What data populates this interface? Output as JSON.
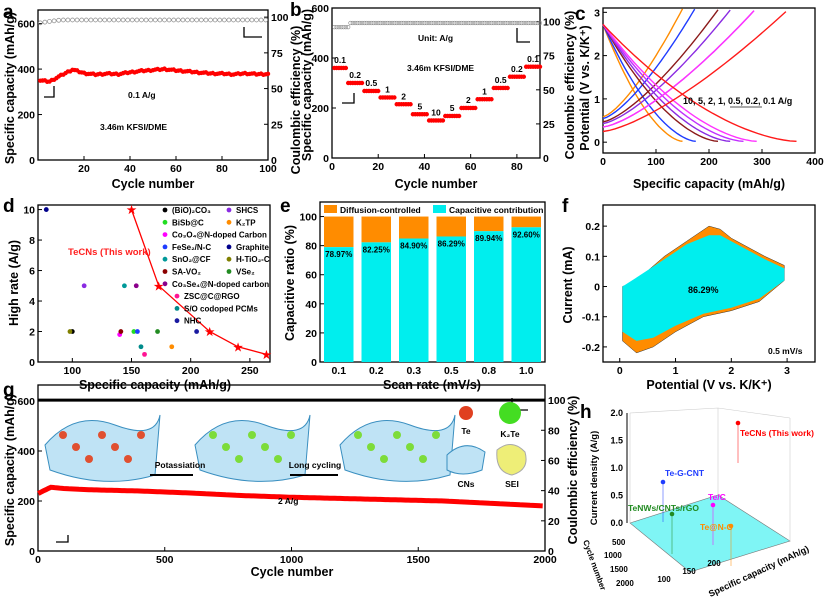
{
  "chart_data": [
    {
      "panel": "a",
      "type": "line",
      "xlabel": "Cycle number",
      "ylabel": "Specific capacity (mAh/g)",
      "y2label": "Coulombic efficiency (%)",
      "xlim": [
        0,
        100
      ],
      "ylim": [
        0,
        660
      ],
      "y2lim": [
        0,
        105
      ],
      "xticks": [
        20,
        40,
        60,
        80,
        100
      ],
      "yticks": [
        0,
        200,
        400,
        600
      ],
      "y2ticks": [
        0,
        25,
        50,
        75,
        100
      ],
      "annotations": [
        "0.1 A/g",
        "3.46m KFSI/DME"
      ],
      "capacity": {
        "x": [
          1,
          5,
          10,
          15,
          20,
          25,
          30,
          35,
          40,
          45,
          50,
          55,
          60,
          65,
          70,
          75,
          80,
          85,
          90,
          95,
          100
        ],
        "y": [
          350,
          345,
          372,
          398,
          382,
          376,
          380,
          378,
          386,
          392,
          396,
          400,
          394,
          390,
          385,
          381,
          380,
          377,
          381,
          378,
          378
        ]
      },
      "coulombic_efficiency": {
        "x": [
          1,
          5,
          10,
          20,
          40,
          60,
          80,
          100
        ],
        "y": [
          96,
          97,
          98,
          98,
          98,
          98,
          98,
          98
        ]
      },
      "colors": {
        "capacity": "#ff0000",
        "ce": "#888888"
      }
    },
    {
      "panel": "b",
      "type": "line",
      "xlabel": "Cycle number",
      "ylabel": "Specific capacity (mAh/g)",
      "y2label": "Coulombic efficiency (%)",
      "xlim": [
        0,
        90
      ],
      "ylim": [
        0,
        600
      ],
      "y2lim": [
        0,
        110
      ],
      "xticks": [
        0,
        20,
        40,
        60,
        80
      ],
      "yticks": [
        0,
        200,
        400,
        600
      ],
      "y2ticks": [
        0,
        25,
        50,
        75,
        100
      ],
      "annotations": [
        "Unit: A/g",
        "3.46m KFSI/DME"
      ],
      "rate_steps": [
        {
          "rate": "0.1",
          "cycles": [
            1,
            6
          ],
          "capacity": 360
        },
        {
          "rate": "0.2",
          "cycles": [
            7,
            13
          ],
          "capacity": 300
        },
        {
          "rate": "0.5",
          "cycles": [
            14,
            20
          ],
          "capacity": 268
        },
        {
          "rate": "1",
          "cycles": [
            21,
            27
          ],
          "capacity": 242
        },
        {
          "rate": "2",
          "cycles": [
            28,
            34
          ],
          "capacity": 215
        },
        {
          "rate": "5",
          "cycles": [
            35,
            41
          ],
          "capacity": 175
        },
        {
          "rate": "10",
          "cycles": [
            42,
            48
          ],
          "capacity": 150
        },
        {
          "rate": "5",
          "cycles": [
            49,
            55
          ],
          "capacity": 168
        },
        {
          "rate": "2",
          "cycles": [
            56,
            62
          ],
          "capacity": 200
        },
        {
          "rate": "1",
          "cycles": [
            63,
            69
          ],
          "capacity": 235
        },
        {
          "rate": "0.5",
          "cycles": [
            70,
            76
          ],
          "capacity": 280
        },
        {
          "rate": "0.2",
          "cycles": [
            77,
            83
          ],
          "capacity": 325
        },
        {
          "rate": "0.1",
          "cycles": [
            84,
            90
          ],
          "capacity": 365
        }
      ],
      "coulombic_efficiency_level": 99
    },
    {
      "panel": "c",
      "type": "line",
      "xlabel": "Specific capacity (mAh/g)",
      "ylabel": "Potential (V vs. K/K⁺)",
      "xlim": [
        0,
        400
      ],
      "ylim": [
        -0.25,
        3.1
      ],
      "xticks": [
        0,
        100,
        200,
        300,
        400
      ],
      "yticks": [
        0,
        1,
        2,
        3
      ],
      "annotation": "10, 5, 2, 1, 0.5, 0.2, 0.1 A/g",
      "series": [
        {
          "rate": "10",
          "discharge_capacity": 150,
          "charge_capacity": 150,
          "color": "#ff8c00"
        },
        {
          "rate": "5",
          "discharge_capacity": 175,
          "charge_capacity": 173,
          "color": "#1f3cff"
        },
        {
          "rate": "2",
          "discharge_capacity": 217,
          "charge_capacity": 217,
          "color": "#8b1a1a"
        },
        {
          "rate": "1",
          "discharge_capacity": 240,
          "charge_capacity": 240,
          "color": "#8a2be2"
        },
        {
          "rate": "0.5",
          "discharge_capacity": 265,
          "charge_capacity": 285,
          "color": "#c030ff"
        },
        {
          "rate": "0.2",
          "discharge_capacity": 290,
          "charge_capacity": 285,
          "color": "#ff33ff"
        },
        {
          "rate": "0.1",
          "discharge_capacity": 365,
          "charge_capacity": 345,
          "color": "#ff1a1a"
        }
      ]
    },
    {
      "panel": "d",
      "type": "scatter",
      "xlabel": "Specific capacity (mAh/g)",
      "ylabel": "High rate (A/g)",
      "xlim": [
        71,
        267
      ],
      "ylim": [
        0,
        10.3
      ],
      "xticks": [
        100,
        150,
        200,
        250
      ],
      "yticks": [
        0,
        2,
        4,
        6,
        8,
        10
      ],
      "this_work": {
        "name": "TeCNs (This work)",
        "x": [
          150,
          173,
          216,
          240,
          264
        ],
        "y": [
          10,
          5,
          2,
          1,
          0.5
        ],
        "color": "#ff0000"
      },
      "series": [
        {
          "name": "(BiO)₂CO₃",
          "color": "#000000",
          "marker": "circle",
          "points": [
            [
              100,
              2
            ]
          ]
        },
        {
          "name": "BiSb@C",
          "color": "#22dd22",
          "marker": "triangle",
          "points": [
            [
              152,
              2
            ]
          ]
        },
        {
          "name": "Co₃O₄@N-doped Carbon",
          "color": "#ff00ff",
          "marker": "circle",
          "points": [
            [
              140,
              1.8
            ]
          ]
        },
        {
          "name": "FeSe₂/N-C",
          "color": "#1f3cff",
          "marker": "half",
          "points": [
            [
              155,
              2
            ]
          ]
        },
        {
          "name": "SnO₂@CF",
          "color": "#009999",
          "marker": "half",
          "points": [
            [
              144,
              5
            ]
          ]
        },
        {
          "name": "SA-VO₂",
          "color": "#8b0000",
          "marker": "triangle",
          "points": [
            [
              141,
              2
            ]
          ]
        },
        {
          "name": "Co₃Se₄@N-doped carbon",
          "color": "#8b008b",
          "marker": "circle",
          "points": [
            [
              154,
              5
            ]
          ]
        },
        {
          "name": "ZSC@C@RGO",
          "color": "#ff1493",
          "marker": "triangle-left",
          "points": [
            [
              161,
              0.5
            ]
          ]
        },
        {
          "name": "S/O codoped PCMs",
          "color": "#008b8b",
          "marker": "circle",
          "points": [
            [
              158,
              1
            ]
          ]
        },
        {
          "name": "NHC",
          "color": "#1a1aa0",
          "marker": "triangle-left",
          "points": [
            [
              205,
              2
            ]
          ]
        },
        {
          "name": "SHCS",
          "color": "#8a2be2",
          "marker": "circle",
          "points": [
            [
              110,
              5
            ]
          ]
        },
        {
          "name": "K₂TP",
          "color": "#ff8c00",
          "marker": "circle",
          "points": [
            [
              184,
              1
            ]
          ]
        },
        {
          "name": "Graphite",
          "color": "#00008b",
          "marker": "circle",
          "points": [
            [
              78,
              10
            ]
          ]
        },
        {
          "name": "H-TiO₂-C",
          "color": "#808000",
          "marker": "circle",
          "points": [
            [
              98,
              2
            ]
          ]
        },
        {
          "name": "VSe₂",
          "color": "#228b22",
          "marker": "circle",
          "points": [
            [
              172,
              2
            ]
          ]
        }
      ]
    },
    {
      "panel": "e",
      "type": "bar",
      "xlabel": "Scan rate (mV/s)",
      "ylabel": "Capacitive ratio (%)",
      "ylim": [
        0,
        110
      ],
      "yticks": [
        0,
        20,
        40,
        60,
        80,
        100
      ],
      "categories": [
        "0.1",
        "0.2",
        "0.3",
        "0.5",
        "0.8",
        "1.0"
      ],
      "series": [
        {
          "name": "Capacitive contribution",
          "values": [
            78.97,
            82.25,
            84.9,
            86.29,
            89.94,
            92.6
          ],
          "color": "#00eeee"
        },
        {
          "name": "Diffusion-controlled",
          "values": [
            21.03,
            17.75,
            15.1,
            13.71,
            10.06,
            7.4
          ],
          "color": "#ff8c00"
        }
      ],
      "data_labels": [
        "78.97%",
        "82.25%",
        "84.90%",
        "86.29%",
        "89.94%",
        "92.60%"
      ],
      "legend": "top"
    },
    {
      "panel": "f",
      "type": "area",
      "xlabel": "Potential (V vs. K/K⁺)",
      "ylabel": "Current (mA)",
      "xlim": [
        -0.3,
        3.5
      ],
      "ylim": [
        -0.25,
        0.27
      ],
      "xticks": [
        0,
        1,
        2,
        3
      ],
      "yticks": [
        -0.2,
        -0.1,
        0.0,
        0.1,
        0.2
      ],
      "annotations": [
        "86.29%",
        "0.5 mV/s"
      ],
      "total_cv": {
        "upper": [
          [
            0.05,
            0.0
          ],
          [
            0.3,
            0.02
          ],
          [
            0.8,
            0.1
          ],
          [
            1.2,
            0.15
          ],
          [
            1.6,
            0.2
          ],
          [
            1.8,
            0.19
          ],
          [
            2.0,
            0.16
          ],
          [
            2.6,
            0.1
          ],
          [
            2.95,
            0.07
          ]
        ],
        "lower": [
          [
            2.95,
            0.02
          ],
          [
            2.5,
            -0.05
          ],
          [
            2.0,
            -0.08
          ],
          [
            1.5,
            -0.1
          ],
          [
            1.0,
            -0.15
          ],
          [
            0.6,
            -0.2
          ],
          [
            0.3,
            -0.22
          ],
          [
            0.05,
            -0.18
          ]
        ]
      },
      "capacitive_cv": {
        "upper": [
          [
            0.05,
            0.0
          ],
          [
            0.3,
            0.03
          ],
          [
            0.8,
            0.09
          ],
          [
            1.2,
            0.14
          ],
          [
            1.6,
            0.17
          ],
          [
            1.8,
            0.17
          ],
          [
            2.0,
            0.15
          ],
          [
            2.6,
            0.09
          ],
          [
            2.95,
            0.06
          ]
        ],
        "lower": [
          [
            2.95,
            0.02
          ],
          [
            2.5,
            -0.04
          ],
          [
            2.0,
            -0.07
          ],
          [
            1.5,
            -0.09
          ],
          [
            1.0,
            -0.13
          ],
          [
            0.6,
            -0.17
          ],
          [
            0.3,
            -0.18
          ],
          [
            0.05,
            -0.15
          ]
        ]
      },
      "colors": {
        "total": "#ff8c00",
        "capacitive": "#00eeee"
      }
    },
    {
      "panel": "g",
      "type": "line",
      "xlabel": "Cycle number",
      "ylabel": "Specific capacity (mAh/g)",
      "y2label": "Coulombic efficiency (%)",
      "xlim": [
        0,
        2000
      ],
      "ylim": [
        0,
        664
      ],
      "y2lim": [
        0,
        110
      ],
      "xticks": [
        0,
        500,
        1000,
        1500,
        2000
      ],
      "yticks": [
        0,
        200,
        400,
        600
      ],
      "y2ticks": [
        0,
        20,
        40,
        60,
        80,
        100
      ],
      "annotations": [
        "2 A/g"
      ],
      "capacity": {
        "x": [
          1,
          50,
          100,
          200,
          400,
          600,
          800,
          1000,
          1200,
          1400,
          1600,
          1800,
          2000
        ],
        "y": [
          230,
          255,
          250,
          245,
          240,
          232,
          222,
          215,
          210,
          205,
          200,
          190,
          180
        ]
      },
      "coulombic_efficiency_level": 100,
      "inset": {
        "labels": [
          "Potassiation",
          "Long cycling",
          "Te",
          "K₂Te",
          "CNs",
          "SEI"
        ]
      }
    },
    {
      "panel": "h",
      "type": "scatter3d",
      "xlabel": "Specific capacity (mAh/g)",
      "ylabel": "Cycle number",
      "zlabel": "Current density (A/g)",
      "zticks": [
        "0.0",
        "0.5",
        "1.0",
        "1.5",
        "2.0"
      ],
      "yticks": [
        "500",
        "1000",
        "1500",
        "2000"
      ],
      "xticks": [
        "100",
        "150",
        "200"
      ],
      "points": [
        {
          "name": "TeCNs (This work)",
          "z": 1.8,
          "color": "#ff0000",
          "marker": "star"
        },
        {
          "name": "Te-G-CNT",
          "z": 0.8,
          "color": "#1f3cff",
          "marker": "circle"
        },
        {
          "name": "Te/C",
          "z": 0.3,
          "color": "#ff00ff",
          "marker": "triangle"
        },
        {
          "name": "TeNWs/CNTs/rGO",
          "z": 0.2,
          "color": "#228b22",
          "marker": "triangle"
        },
        {
          "name": "Te@N-C",
          "z": 0.1,
          "color": "#ff8c00",
          "marker": "circle"
        }
      ],
      "floor_color": "#7ff5f5"
    }
  ]
}
